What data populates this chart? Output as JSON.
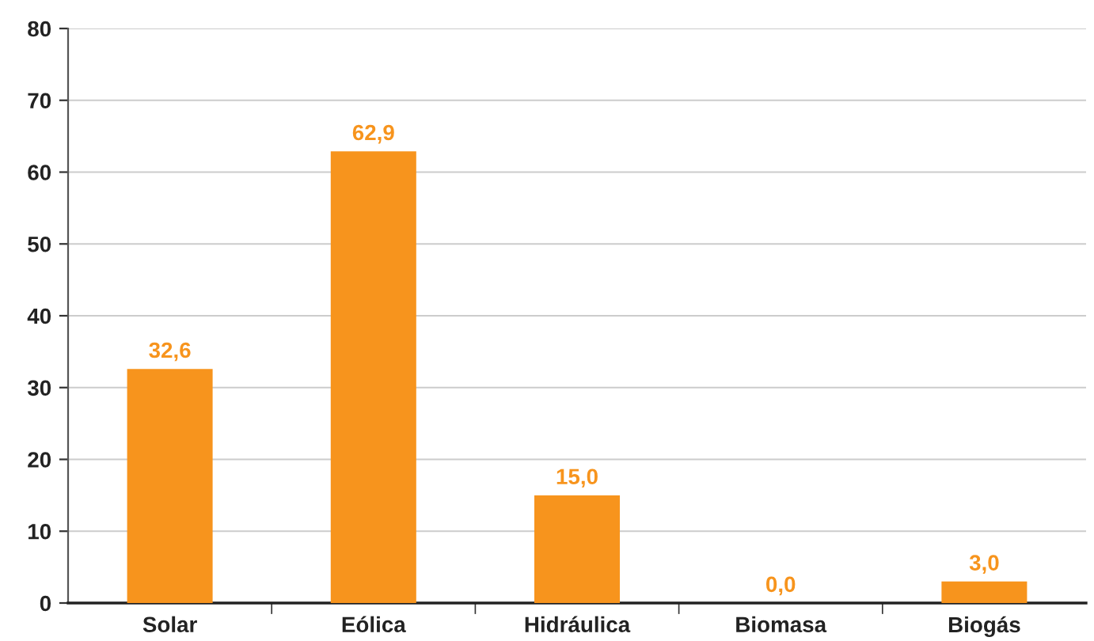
{
  "chart_data": {
    "type": "bar",
    "categories": [
      "Solar",
      "Eólica",
      "Hidráulica",
      "Biomasa",
      "Biogás"
    ],
    "values": [
      32.6,
      62.9,
      15.0,
      0.0,
      3.0
    ],
    "value_labels": [
      "32,6",
      "62,9",
      "15,0",
      "0,0",
      "3,0"
    ],
    "color": "#f7941d",
    "ylim": [
      0,
      80
    ],
    "yticks": [
      0,
      10,
      20,
      30,
      40,
      50,
      60,
      70,
      80
    ],
    "grid": "y"
  }
}
